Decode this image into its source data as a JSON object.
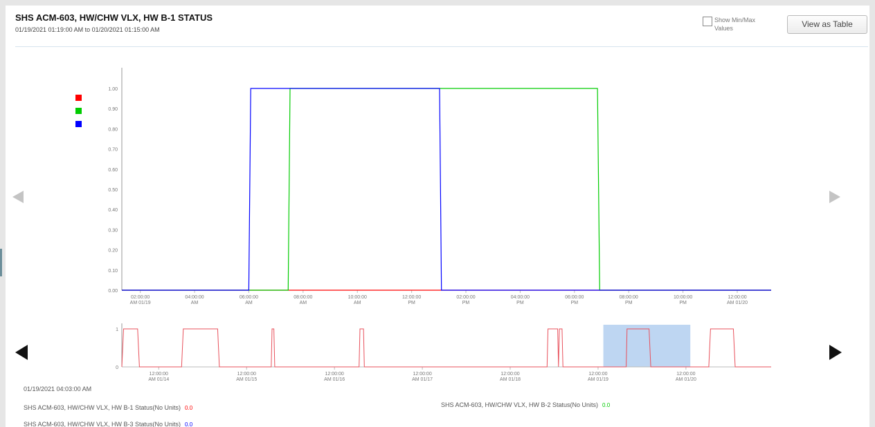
{
  "header": {
    "title": "SHS ACM-603, HW/CHW VLX, HW B-1 STATUS",
    "date_range": "01/19/2021 01:19:00 AM to 01/20/2021 01:15:00 AM",
    "show_minmax_label": "Show Min/Max Values",
    "show_minmax_checked": false,
    "view_table_label": "View as Table"
  },
  "icons": {
    "main_prev": "arrow-left-icon",
    "main_next": "arrow-right-icon",
    "overview_prev": "arrow-left-icon",
    "overview_next": "arrow-right-icon"
  },
  "colors": {
    "b1": "#ff0000",
    "b2": "#00cc00",
    "b3": "#0000ff",
    "overview_line": "#e8505b",
    "selection": "#a8c8ee"
  },
  "chart_data": [
    {
      "type": "line",
      "title": "",
      "y_ticks": [
        "0.00",
        "0.10",
        "0.20",
        "0.30",
        "0.40",
        "0.50",
        "0.60",
        "0.70",
        "0.80",
        "0.90",
        "1.00"
      ],
      "ylim": [
        0,
        1
      ],
      "x_ticks": [
        {
          "l1": "02:00:00",
          "l2": "AM 01/19",
          "h": 2
        },
        {
          "l1": "04:00:00",
          "l2": "AM",
          "h": 4
        },
        {
          "l1": "06:00:00",
          "l2": "AM",
          "h": 6
        },
        {
          "l1": "08:00:00",
          "l2": "AM",
          "h": 8
        },
        {
          "l1": "10:00:00",
          "l2": "AM",
          "h": 10
        },
        {
          "l1": "12:00:00",
          "l2": "PM",
          "h": 12
        },
        {
          "l1": "02:00:00",
          "l2": "PM",
          "h": 14
        },
        {
          "l1": "04:00:00",
          "l2": "PM",
          "h": 16
        },
        {
          "l1": "06:00:00",
          "l2": "PM",
          "h": 18
        },
        {
          "l1": "08:00:00",
          "l2": "PM",
          "h": 20
        },
        {
          "l1": "10:00:00",
          "l2": "PM",
          "h": 22
        },
        {
          "l1": "12:00:00",
          "l2": "AM 01/20",
          "h": 24
        }
      ],
      "x_range_hours": [
        1.32,
        25.25
      ],
      "series": [
        {
          "color_key": "b1",
          "points": [
            [
              1.32,
              0
            ],
            [
              25.25,
              0
            ]
          ]
        },
        {
          "color_key": "b2",
          "points": [
            [
              1.32,
              0
            ],
            [
              7.45,
              0
            ],
            [
              7.52,
              1
            ],
            [
              18.85,
              1
            ],
            [
              18.93,
              0
            ],
            [
              25.25,
              0
            ]
          ]
        },
        {
          "color_key": "b3",
          "points": [
            [
              1.32,
              0
            ],
            [
              6.0,
              0
            ],
            [
              6.07,
              1
            ],
            [
              13.03,
              1
            ],
            [
              13.1,
              0
            ],
            [
              25.25,
              0
            ]
          ]
        }
      ]
    },
    {
      "type": "line",
      "title": "",
      "y_ticks": [
        "0",
        "1"
      ],
      "ylim": [
        0,
        1
      ],
      "x_ticks": [
        {
          "l1": "12:00:00",
          "l2": "AM 01/14",
          "d": 1
        },
        {
          "l1": "12:00:00",
          "l2": "AM 01/15",
          "d": 2
        },
        {
          "l1": "12:00:00",
          "l2": "AM 01/16",
          "d": 3
        },
        {
          "l1": "12:00:00",
          "l2": "AM 01/17",
          "d": 4
        },
        {
          "l1": "12:00:00",
          "l2": "AM 01/18",
          "d": 5
        },
        {
          "l1": "12:00:00",
          "l2": "AM 01/19",
          "d": 6
        },
        {
          "l1": "12:00:00",
          "l2": "AM 01/20",
          "d": 7
        }
      ],
      "x_range_days": [
        0.58,
        7.97
      ],
      "selection_days": [
        6.06,
        7.05
      ],
      "series": [
        {
          "color_key": "overview_line",
          "points": [
            [
              0.58,
              0
            ],
            [
              0.6,
              1
            ],
            [
              0.76,
              1
            ],
            [
              0.78,
              0
            ],
            [
              1.26,
              0
            ],
            [
              1.28,
              1
            ],
            [
              1.67,
              1
            ],
            [
              1.69,
              0
            ],
            [
              2.28,
              0
            ],
            [
              2.29,
              1
            ],
            [
              2.31,
              1
            ],
            [
              2.32,
              0
            ],
            [
              3.28,
              0
            ],
            [
              3.29,
              1
            ],
            [
              3.33,
              1
            ],
            [
              3.34,
              0
            ],
            [
              5.42,
              0
            ],
            [
              5.43,
              1
            ],
            [
              5.54,
              1
            ],
            [
              5.55,
              0
            ],
            [
              5.56,
              1
            ],
            [
              5.59,
              1
            ],
            [
              5.6,
              0
            ],
            [
              6.32,
              0
            ],
            [
              6.33,
              1
            ],
            [
              6.58,
              1
            ],
            [
              6.6,
              0
            ],
            [
              7.26,
              0
            ],
            [
              7.28,
              1
            ],
            [
              7.54,
              1
            ],
            [
              7.56,
              0
            ],
            [
              7.97,
              0
            ]
          ]
        }
      ]
    }
  ],
  "footer": {
    "cursor_time": "01/19/2021 04:03:00 AM",
    "items": [
      {
        "label": "SHS ACM-603, HW/CHW VLX, HW B-1 Status(No Units)",
        "value": "0.0",
        "color_key": "b1"
      },
      {
        "label": "SHS ACM-603, HW/CHW VLX, HW B-2 Status(No Units)",
        "value": "0.0",
        "color_key": "b2"
      },
      {
        "label": "SHS ACM-603, HW/CHW VLX, HW B-3 Status(No Units)",
        "value": "0.0",
        "color_key": "b3"
      }
    ]
  }
}
